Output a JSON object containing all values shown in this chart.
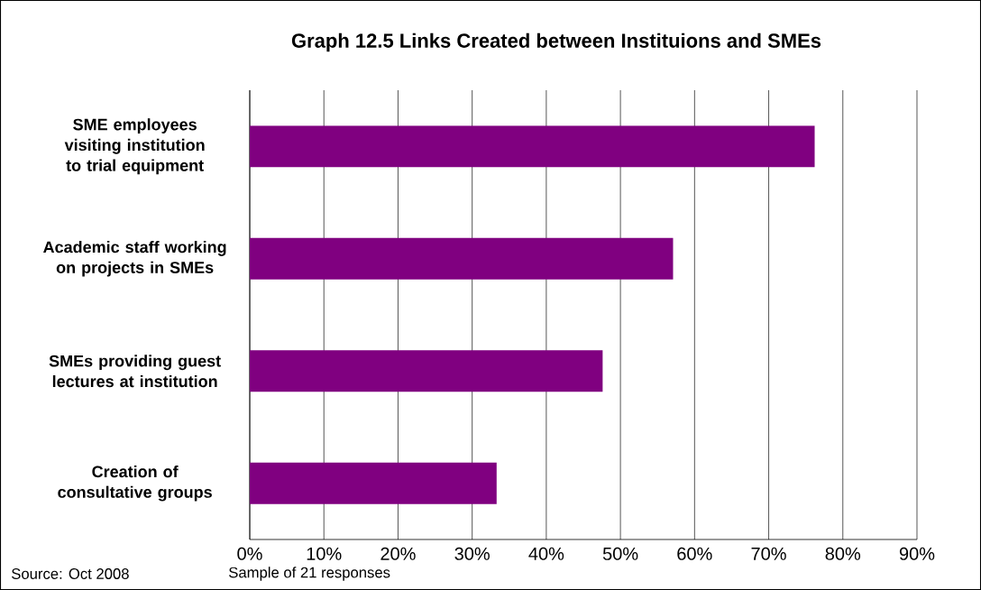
{
  "chart_data": {
    "type": "bar",
    "orientation": "horizontal",
    "title": "Graph 12.5 Links Created between Instituions and SMEs",
    "categories": [
      "SME employees visiting institution to trial equipment",
      "Academic staff working on projects in SMEs",
      "SMEs providing guest lectures at institution",
      "Creation of consultative groups"
    ],
    "values": [
      76.2,
      57.1,
      47.6,
      33.3
    ],
    "color": "#800080",
    "xlim": [
      0,
      90
    ],
    "xticks": [
      {
        "value": 0,
        "label": "0%"
      },
      {
        "value": 10,
        "label": "10%"
      },
      {
        "value": 20,
        "label": "20%"
      },
      {
        "value": 30,
        "label": "30%"
      },
      {
        "value": 40,
        "label": "40%"
      },
      {
        "value": 50,
        "label": "50%"
      },
      {
        "value": 60,
        "label": "60%"
      },
      {
        "value": 70,
        "label": "70%"
      },
      {
        "value": 80,
        "label": "80%"
      },
      {
        "value": 90,
        "label": "90%"
      }
    ],
    "grid": "x",
    "annotations": [
      "Source: Oct 2008",
      "Sample of 21 responses"
    ]
  }
}
